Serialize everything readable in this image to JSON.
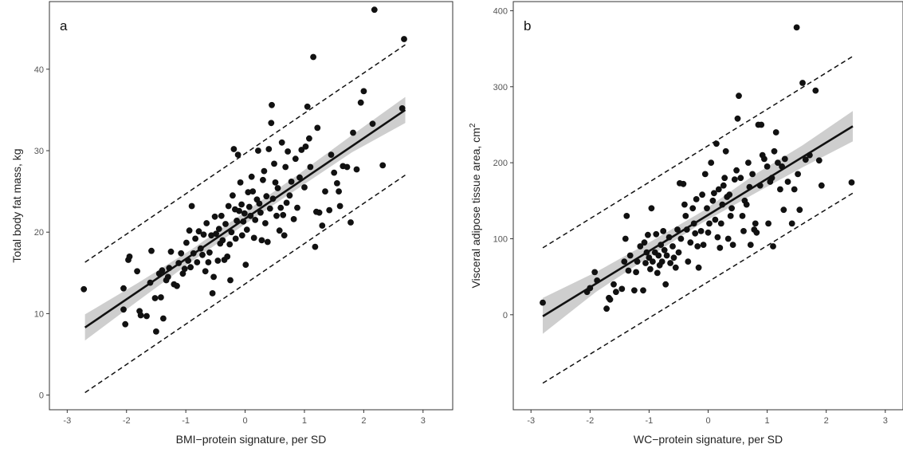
{
  "chart_data": [
    {
      "type": "scatter",
      "panel_label": "a",
      "xlabel": "BMI−protein signature, per SD",
      "ylabel": "Total body fat mass, kg",
      "ylabel_sup": "",
      "xlim": [
        -3.3,
        3.5
      ],
      "ylim": [
        -1.8,
        48.3
      ],
      "xticks": [
        -3,
        -2,
        -1,
        0,
        1,
        2,
        3
      ],
      "xtick_labels": [
        "-3",
        "-2",
        "-1",
        "0",
        "1",
        "2",
        "3"
      ],
      "yticks": [
        0,
        10,
        20,
        30,
        40
      ],
      "ytick_labels": [
        "0",
        "10",
        "20",
        "30",
        "40"
      ],
      "grid": false,
      "fit_line": {
        "x": [
          -2.7,
          2.7
        ],
        "y": [
          8.3,
          35.0
        ]
      },
      "confidence_band": {
        "x": [
          -2.7,
          -1.8,
          -0.9,
          0.0,
          0.9,
          1.8,
          2.7
        ],
        "lower": [
          6.7,
          11.6,
          16.4,
          21.0,
          25.4,
          29.8,
          33.4
        ],
        "upper": [
          9.9,
          13.8,
          17.9,
          22.5,
          27.1,
          31.9,
          36.6
        ]
      },
      "prediction_interval": {
        "lower": {
          "x": [
            -2.7,
            2.7
          ],
          "y": [
            0.3,
            27.0
          ]
        },
        "upper": {
          "x": [
            -2.7,
            2.7
          ],
          "y": [
            16.3,
            43.0
          ]
        }
      },
      "points": [
        [
          -2.72,
          13.0
        ],
        [
          -2.05,
          13.1
        ],
        [
          -2.02,
          8.7
        ],
        [
          -2.05,
          10.5
        ],
        [
          -1.97,
          16.6
        ],
        [
          -1.95,
          17.0
        ],
        [
          -1.82,
          15.2
        ],
        [
          -1.78,
          10.3
        ],
        [
          -1.76,
          9.8
        ],
        [
          -1.66,
          9.7
        ],
        [
          -1.6,
          13.8
        ],
        [
          -1.58,
          17.7
        ],
        [
          -1.52,
          11.9
        ],
        [
          -1.5,
          7.8
        ],
        [
          -1.45,
          14.9
        ],
        [
          -1.42,
          12.0
        ],
        [
          -1.4,
          15.3
        ],
        [
          -1.38,
          9.4
        ],
        [
          -1.33,
          14.1
        ],
        [
          -1.3,
          14.5
        ],
        [
          -1.28,
          15.6
        ],
        [
          -1.25,
          17.6
        ],
        [
          -1.2,
          13.6
        ],
        [
          -1.15,
          13.4
        ],
        [
          -1.12,
          16.2
        ],
        [
          -1.08,
          17.4
        ],
        [
          -1.05,
          14.9
        ],
        [
          -1.02,
          15.5
        ],
        [
          -0.99,
          18.7
        ],
        [
          -0.96,
          16.5
        ],
        [
          -0.94,
          20.2
        ],
        [
          -0.92,
          15.7
        ],
        [
          -0.9,
          23.2
        ],
        [
          -0.87,
          17.4
        ],
        [
          -0.84,
          19.2
        ],
        [
          -0.81,
          16.3
        ],
        [
          -0.78,
          20.1
        ],
        [
          -0.75,
          18.0
        ],
        [
          -0.72,
          17.2
        ],
        [
          -0.7,
          19.7
        ],
        [
          -0.67,
          15.2
        ],
        [
          -0.65,
          21.1
        ],
        [
          -0.62,
          16.3
        ],
        [
          -0.6,
          17.5
        ],
        [
          -0.57,
          19.6
        ],
        [
          -0.55,
          12.5
        ],
        [
          -0.53,
          14.5
        ],
        [
          -0.51,
          21.9
        ],
        [
          -0.49,
          19.8
        ],
        [
          -0.46,
          16.5
        ],
        [
          -0.44,
          20.4
        ],
        [
          -0.42,
          18.6
        ],
        [
          -0.4,
          22.0
        ],
        [
          -0.38,
          19.0
        ],
        [
          -0.35,
          16.6
        ],
        [
          -0.33,
          21.0
        ],
        [
          -0.3,
          17.0
        ],
        [
          -0.28,
          23.2
        ],
        [
          -0.26,
          18.5
        ],
        [
          -0.25,
          14.1
        ],
        [
          -0.23,
          20.0
        ],
        [
          -0.21,
          24.5
        ],
        [
          -0.19,
          30.2
        ],
        [
          -0.17,
          22.8
        ],
        [
          -0.16,
          19.2
        ],
        [
          -0.14,
          21.4
        ],
        [
          -0.12,
          29.5
        ],
        [
          -0.1,
          22.6
        ],
        [
          -0.08,
          26.1
        ],
        [
          -0.06,
          23.4
        ],
        [
          -0.05,
          19.6
        ],
        [
          -0.03,
          21.3
        ],
        [
          -0.01,
          22.3
        ],
        [
          0.01,
          16.0
        ],
        [
          0.03,
          20.3
        ],
        [
          0.05,
          24.9
        ],
        [
          0.07,
          23.1
        ],
        [
          0.09,
          22.0
        ],
        [
          0.11,
          26.8
        ],
        [
          0.13,
          25.0
        ],
        [
          0.15,
          19.3
        ],
        [
          0.17,
          21.5
        ],
        [
          0.2,
          24.0
        ],
        [
          0.22,
          30.0
        ],
        [
          0.24,
          23.5
        ],
        [
          0.26,
          22.4
        ],
        [
          0.28,
          19.0
        ],
        [
          0.3,
          26.4
        ],
        [
          0.32,
          27.5
        ],
        [
          0.34,
          21.1
        ],
        [
          0.36,
          24.4
        ],
        [
          0.38,
          18.8
        ],
        [
          0.4,
          30.2
        ],
        [
          0.42,
          22.9
        ],
        [
          0.44,
          33.4
        ],
        [
          0.45,
          35.6
        ],
        [
          0.47,
          24.1
        ],
        [
          0.49,
          28.4
        ],
        [
          0.51,
          26.1
        ],
        [
          0.53,
          22.0
        ],
        [
          0.55,
          25.4
        ],
        [
          0.58,
          20.2
        ],
        [
          0.6,
          23.0
        ],
        [
          0.62,
          31.0
        ],
        [
          0.64,
          22.1
        ],
        [
          0.66,
          19.6
        ],
        [
          0.68,
          28.0
        ],
        [
          0.7,
          23.6
        ],
        [
          0.72,
          29.9
        ],
        [
          0.75,
          24.5
        ],
        [
          0.78,
          26.2
        ],
        [
          0.82,
          21.6
        ],
        [
          0.85,
          29.0
        ],
        [
          0.88,
          23.0
        ],
        [
          0.92,
          26.7
        ],
        [
          0.95,
          30.1
        ],
        [
          1.0,
          25.5
        ],
        [
          1.02,
          30.5
        ],
        [
          1.05,
          35.4
        ],
        [
          1.08,
          31.5
        ],
        [
          1.1,
          28.0
        ],
        [
          1.15,
          41.5
        ],
        [
          1.18,
          18.2
        ],
        [
          1.2,
          22.5
        ],
        [
          1.22,
          32.8
        ],
        [
          1.25,
          22.4
        ],
        [
          1.3,
          20.8
        ],
        [
          1.35,
          25.0
        ],
        [
          1.42,
          22.7
        ],
        [
          1.45,
          29.5
        ],
        [
          1.5,
          27.3
        ],
        [
          1.55,
          26.0
        ],
        [
          1.58,
          25.0
        ],
        [
          1.6,
          23.2
        ],
        [
          1.65,
          28.1
        ],
        [
          1.72,
          28.0
        ],
        [
          1.78,
          21.2
        ],
        [
          1.82,
          32.2
        ],
        [
          1.88,
          27.7
        ],
        [
          1.95,
          35.9
        ],
        [
          2.0,
          37.3
        ],
        [
          2.15,
          33.3
        ],
        [
          2.18,
          47.3
        ],
        [
          2.32,
          28.2
        ],
        [
          2.68,
          43.7
        ],
        [
          2.65,
          35.2
        ]
      ]
    },
    {
      "type": "scatter",
      "panel_label": "b",
      "xlabel": "WC−protein signature, per SD",
      "ylabel": "Visceral adipose tissue area, cm",
      "ylabel_sup": "2",
      "xlim": [
        -3.3,
        3.3
      ],
      "ylim": [
        -125,
        412
      ],
      "xticks": [
        -3,
        -2,
        -1,
        0,
        1,
        2,
        3
      ],
      "xtick_labels": [
        "-3",
        "-2",
        "-1",
        "0",
        "1",
        "2",
        "3"
      ],
      "yticks": [
        0,
        100,
        200,
        300,
        400
      ],
      "ytick_labels": [
        "0",
        "100",
        "200",
        "300",
        "400"
      ],
      "grid": false,
      "fit_line": {
        "x": [
          -2.8,
          2.45
        ],
        "y": [
          -2,
          248
        ]
      },
      "confidence_band": {
        "x": [
          -2.8,
          -1.9,
          -1.0,
          -0.1,
          0.8,
          1.6,
          2.45
        ],
        "lower": [
          -25,
          30,
          76,
          121,
          160,
          194,
          228
        ],
        "upper": [
          22,
          56,
          95,
          136,
          185,
          223,
          268
        ]
      },
      "prediction_interval": {
        "lower": {
          "x": [
            -2.8,
            2.45
          ],
          "y": [
            -90,
            160
          ]
        },
        "upper": {
          "x": [
            -2.8,
            2.45
          ],
          "y": [
            88,
            340
          ]
        }
      },
      "points": [
        [
          -2.8,
          16
        ],
        [
          -2.05,
          30
        ],
        [
          -2.0,
          35
        ],
        [
          -1.92,
          56
        ],
        [
          -1.88,
          45
        ],
        [
          -1.72,
          8
        ],
        [
          -1.68,
          22
        ],
        [
          -1.66,
          20
        ],
        [
          -1.6,
          40
        ],
        [
          -1.56,
          30
        ],
        [
          -1.46,
          34
        ],
        [
          -1.42,
          70
        ],
        [
          -1.4,
          100
        ],
        [
          -1.38,
          130
        ],
        [
          -1.35,
          58
        ],
        [
          -1.32,
          78
        ],
        [
          -1.25,
          32
        ],
        [
          -1.22,
          56
        ],
        [
          -1.2,
          70
        ],
        [
          -1.15,
          90
        ],
        [
          -1.1,
          32
        ],
        [
          -1.08,
          95
        ],
        [
          -1.06,
          68
        ],
        [
          -1.04,
          82
        ],
        [
          -1.02,
          105
        ],
        [
          -1.0,
          75
        ],
        [
          -0.98,
          60
        ],
        [
          -0.96,
          140
        ],
        [
          -0.94,
          70
        ],
        [
          -0.9,
          82
        ],
        [
          -0.88,
          106
        ],
        [
          -0.86,
          55
        ],
        [
          -0.84,
          78
        ],
        [
          -0.82,
          65
        ],
        [
          -0.8,
          92
        ],
        [
          -0.78,
          70
        ],
        [
          -0.76,
          110
        ],
        [
          -0.74,
          85
        ],
        [
          -0.72,
          40
        ],
        [
          -0.7,
          78
        ],
        [
          -0.66,
          102
        ],
        [
          -0.64,
          68
        ],
        [
          -0.6,
          90
        ],
        [
          -0.58,
          75
        ],
        [
          -0.55,
          62
        ],
        [
          -0.52,
          112
        ],
        [
          -0.5,
          82
        ],
        [
          -0.48,
          173
        ],
        [
          -0.46,
          100
        ],
        [
          -0.42,
          172
        ],
        [
          -0.4,
          145
        ],
        [
          -0.38,
          130
        ],
        [
          -0.36,
          112
        ],
        [
          -0.34,
          70
        ],
        [
          -0.3,
          95
        ],
        [
          -0.26,
          140
        ],
        [
          -0.24,
          120
        ],
        [
          -0.22,
          107
        ],
        [
          -0.2,
          152
        ],
        [
          -0.18,
          90
        ],
        [
          -0.16,
          62
        ],
        [
          -0.12,
          110
        ],
        [
          -0.1,
          158
        ],
        [
          -0.08,
          92
        ],
        [
          -0.05,
          185
        ],
        [
          -0.02,
          140
        ],
        [
          0.0,
          108
        ],
        [
          0.02,
          120
        ],
        [
          0.05,
          200
        ],
        [
          0.08,
          150
        ],
        [
          0.1,
          160
        ],
        [
          0.12,
          125
        ],
        [
          0.14,
          225
        ],
        [
          0.16,
          102
        ],
        [
          0.18,
          165
        ],
        [
          0.2,
          88
        ],
        [
          0.22,
          120
        ],
        [
          0.24,
          145
        ],
        [
          0.26,
          170
        ],
        [
          0.28,
          180
        ],
        [
          0.3,
          215
        ],
        [
          0.32,
          155
        ],
        [
          0.34,
          100
        ],
        [
          0.36,
          158
        ],
        [
          0.38,
          130
        ],
        [
          0.4,
          140
        ],
        [
          0.42,
          92
        ],
        [
          0.45,
          178
        ],
        [
          0.48,
          190
        ],
        [
          0.5,
          258
        ],
        [
          0.52,
          288
        ],
        [
          0.55,
          180
        ],
        [
          0.58,
          130
        ],
        [
          0.6,
          110
        ],
        [
          0.62,
          150
        ],
        [
          0.65,
          145
        ],
        [
          0.68,
          200
        ],
        [
          0.7,
          168
        ],
        [
          0.72,
          92
        ],
        [
          0.75,
          185
        ],
        [
          0.78,
          112
        ],
        [
          0.8,
          120
        ],
        [
          0.82,
          108
        ],
        [
          0.85,
          250
        ],
        [
          0.88,
          170
        ],
        [
          0.9,
          250
        ],
        [
          0.92,
          210
        ],
        [
          0.95,
          205
        ],
        [
          1.0,
          195
        ],
        [
          1.02,
          120
        ],
        [
          1.05,
          175
        ],
        [
          1.08,
          180
        ],
        [
          1.1,
          90
        ],
        [
          1.12,
          215
        ],
        [
          1.15,
          240
        ],
        [
          1.18,
          200
        ],
        [
          1.22,
          165
        ],
        [
          1.25,
          195
        ],
        [
          1.28,
          138
        ],
        [
          1.3,
          205
        ],
        [
          1.35,
          175
        ],
        [
          1.42,
          120
        ],
        [
          1.46,
          165
        ],
        [
          1.5,
          378
        ],
        [
          1.52,
          185
        ],
        [
          1.55,
          138
        ],
        [
          1.6,
          305
        ],
        [
          1.65,
          204
        ],
        [
          1.72,
          210
        ],
        [
          1.82,
          295
        ],
        [
          1.88,
          203
        ],
        [
          1.92,
          170
        ],
        [
          2.43,
          174
        ]
      ]
    }
  ]
}
